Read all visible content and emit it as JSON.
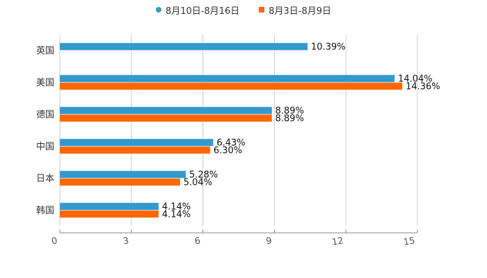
{
  "legend": {
    "series_a": {
      "label": "8月10日-8月16日",
      "color": "#3399CC",
      "marker": "circle"
    },
    "series_b": {
      "label": "8月3日-8月9日",
      "color": "#FF6600",
      "marker": "square"
    }
  },
  "chart_data": {
    "type": "bar",
    "orientation": "horizontal",
    "title": "",
    "xlabel": "",
    "ylabel": "",
    "categories": [
      "英国",
      "美国",
      "德国",
      "中国",
      "日本",
      "韩国"
    ],
    "series": [
      {
        "name": "8月10日-8月16日",
        "color": "#3399CC",
        "values": [
          10.39,
          14.04,
          8.89,
          6.43,
          5.28,
          4.14
        ],
        "labels": [
          "10.39%",
          "14.04%",
          "8.89%",
          "6.43%",
          "5.28%",
          "4.14%"
        ]
      },
      {
        "name": "8月3日-8月9日",
        "color": "#FF6600",
        "values": [
          null,
          14.36,
          8.89,
          6.3,
          5.04,
          4.14
        ],
        "labels": [
          "",
          "14.36%",
          "8.89%",
          "6.30%",
          "5.04%",
          "4.14%"
        ]
      }
    ],
    "xlim": [
      0,
      15
    ],
    "xticks": [
      "0",
      "3",
      "6",
      "9",
      "12",
      "15"
    ],
    "grid": "vertical",
    "legend_position": "top"
  }
}
